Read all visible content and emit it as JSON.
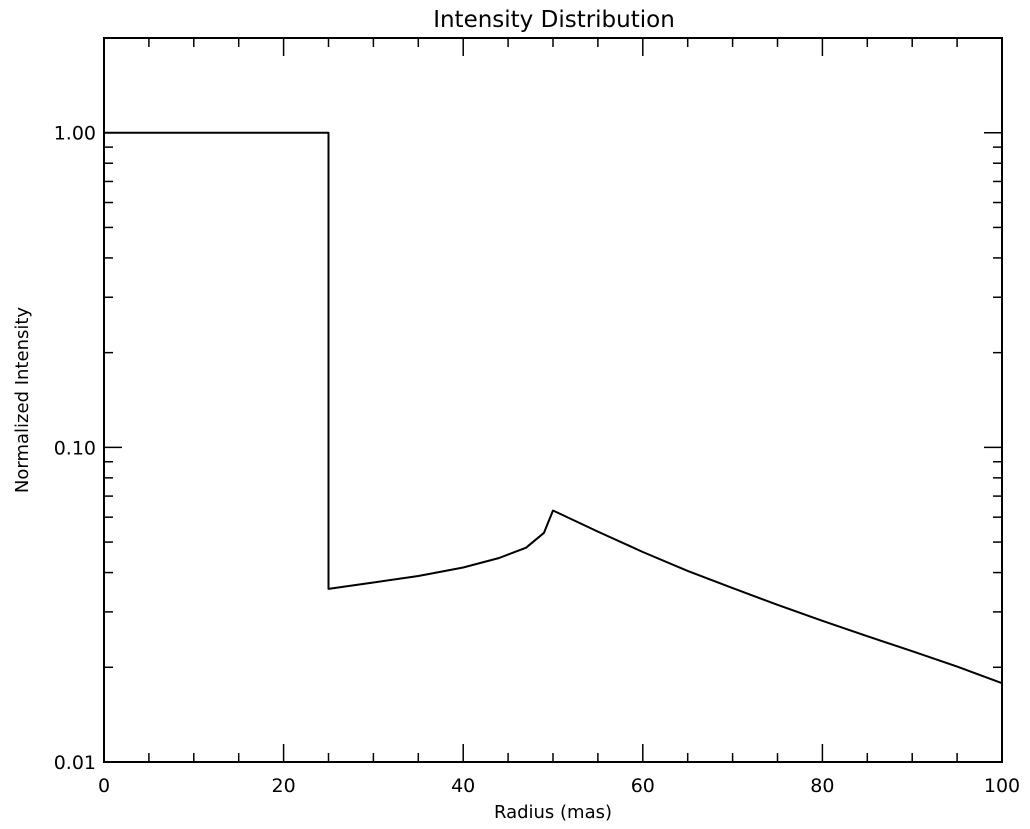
{
  "chart_data": {
    "type": "line",
    "title": "Intensity Distribution",
    "xlabel": "Radius (mas)",
    "ylabel": "Normalized Intensity",
    "xlim": [
      0,
      100
    ],
    "ylim": [
      0.01,
      2.0
    ],
    "yscale": "log",
    "grid": false,
    "x_ticks": [
      {
        "value": 0,
        "label": "0"
      },
      {
        "value": 20,
        "label": "20"
      },
      {
        "value": 40,
        "label": "40"
      },
      {
        "value": 60,
        "label": "60"
      },
      {
        "value": 80,
        "label": "80"
      },
      {
        "value": 100,
        "label": "100"
      }
    ],
    "y_ticks": [
      {
        "value": 0.01,
        "label": "0.01"
      },
      {
        "value": 0.1,
        "label": "0.10"
      },
      {
        "value": 1.0,
        "label": "1.00"
      }
    ],
    "series": [
      {
        "color": "#000000",
        "points": [
          [
            0,
            1.0
          ],
          [
            25,
            1.0
          ],
          [
            25,
            0.0355
          ],
          [
            30,
            0.0372
          ],
          [
            35,
            0.039
          ],
          [
            40,
            0.0415
          ],
          [
            44,
            0.0445
          ],
          [
            47,
            0.048
          ],
          [
            49,
            0.0535
          ],
          [
            50,
            0.063
          ],
          [
            55,
            0.054
          ],
          [
            60,
            0.0465
          ],
          [
            65,
            0.0405
          ],
          [
            70,
            0.0357
          ],
          [
            75,
            0.0316
          ],
          [
            80,
            0.0281
          ],
          [
            85,
            0.0251
          ],
          [
            90,
            0.0225
          ],
          [
            95,
            0.0201
          ],
          [
            100,
            0.0178
          ]
        ]
      }
    ]
  }
}
